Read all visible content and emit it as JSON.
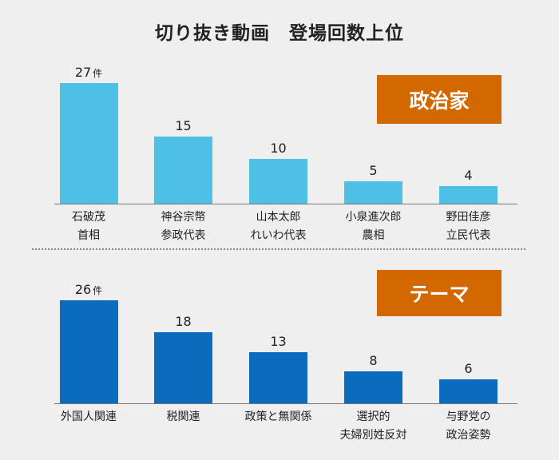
{
  "title": "切り抜き動画　登場回数上位",
  "chart_data": [
    {
      "type": "bar",
      "name": "politicians",
      "badge": "政治家",
      "color": "#4fc1e6",
      "unit": "件",
      "categories": [
        [
          "石破茂",
          "首相"
        ],
        [
          "神谷宗幣",
          "参政代表"
        ],
        [
          "山本太郎",
          "れいわ代表"
        ],
        [
          "小泉進次郎",
          "農相"
        ],
        [
          "野田佳彦",
          "立民代表"
        ]
      ],
      "values": [
        27,
        15,
        10,
        5,
        4
      ],
      "ylim": [
        0,
        27
      ]
    },
    {
      "type": "bar",
      "name": "themes",
      "badge": "テーマ",
      "color": "#0b6cbd",
      "unit": "件",
      "categories": [
        [
          "外国人関連"
        ],
        [
          "税関連"
        ],
        [
          "政策と無関係"
        ],
        [
          "選択的",
          "夫婦別姓反対"
        ],
        [
          "与野党の",
          "政治姿勢"
        ]
      ],
      "values": [
        26,
        18,
        13,
        8,
        6
      ],
      "ylim": [
        0,
        26
      ]
    }
  ]
}
